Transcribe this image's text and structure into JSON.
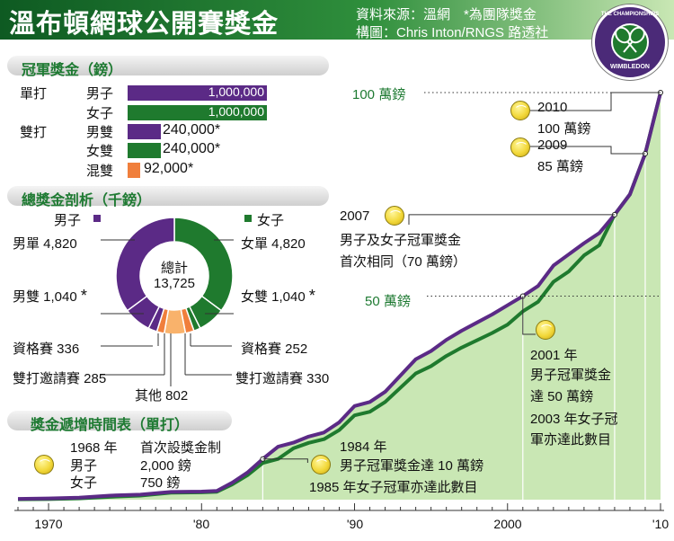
{
  "header": {
    "title": "溫布頓網球公開賽獎金",
    "source_line1": "資料來源：溫網　*為團隊獎金",
    "source_line2": "構圖：Chris Inton/RNGS  路透社",
    "logo_top": "THE CHAMPIONSHIPS",
    "logo_bottom": "WIMBLEDON"
  },
  "champion_prize": {
    "section_title": "冠軍獎金（鎊）",
    "singles_label": "單打",
    "doubles_label": "雙打",
    "rows": [
      {
        "label": "男子",
        "value": 1000000,
        "text": "1,000,000",
        "color": "#5b2a86",
        "asterisk": ""
      },
      {
        "label": "女子",
        "value": 1000000,
        "text": "1,000,000",
        "color": "#1f7a2e",
        "asterisk": ""
      },
      {
        "label": "男雙",
        "value": 240000,
        "text": "240,000",
        "color": "#5b2a86",
        "asterisk": "*"
      },
      {
        "label": "女雙",
        "value": 240000,
        "text": "240,000",
        "color": "#1f7a2e",
        "asterisk": "*"
      },
      {
        "label": "混雙",
        "value": 92000,
        "text": "92,000",
        "color": "#f07f3c",
        "asterisk": "*"
      }
    ]
  },
  "breakdown": {
    "section_title": "總獎金剖析（千鎊）",
    "legend_men": "男子",
    "legend_women": "女子",
    "total_label": "總計",
    "total_value": "13,725",
    "labels": {
      "men_singles": "男單 4,820",
      "women_singles": "女單 4,820",
      "men_doubles": "男雙 1,040",
      "women_doubles": "女雙 1,040",
      "men_qual": "資格賽 336",
      "women_qual": "資格賽 252",
      "men_invit": "雙打邀請賽 285",
      "women_invit": "雙打邀請賽 330",
      "other": "其他 802",
      "star": "*"
    }
  },
  "timeline": {
    "section_title": "獎金遞增時間表（單打）",
    "ann_1968_year": "1968 年",
    "ann_1968_text": "首次設獎金制",
    "ann_1968_men": "男子",
    "ann_1968_men_val": "2,000 鎊",
    "ann_1968_women": "女子",
    "ann_1968_women_val": "750 鎊",
    "ann_1984_year": "1984 年",
    "ann_1984_l1": "男子冠軍獎金達 10 萬鎊",
    "ann_1984_l2": "1985 年女子冠軍亦達此數目",
    "ann_2001_l1": "2001 年",
    "ann_2001_l2": "男子冠軍獎金",
    "ann_2001_l3": "達 50 萬鎊",
    "ann_2001_l4": "2003 年女子冠",
    "ann_2001_l5": "軍亦達此數目",
    "ann_2007_l1": "2007",
    "ann_2007_l2": "男子及女子冠軍獎金",
    "ann_2007_l3": "首次相同（70 萬鎊）",
    "ann_2009_l1": "2009",
    "ann_2009_l2": "85 萬鎊",
    "ann_2010_l1": "2010",
    "ann_2010_l2": "100 萬鎊",
    "ref_100": "100 萬鎊",
    "ref_50": "50 萬鎊"
  },
  "colors": {
    "men": "#5b2a86",
    "women": "#1f7a2e",
    "mixed": "#f07f3c",
    "title_green": "#1e7a32",
    "area": "#c9e7b4"
  },
  "chart_data": {
    "type": "line",
    "title": "獎金遞增時間表（單打）",
    "xlabel": "",
    "ylabel": "",
    "x_tick_labels": [
      "1970",
      "'80",
      "'90",
      "2000",
      "'10"
    ],
    "x_ticks": [
      1970,
      1980,
      1990,
      2000,
      2010
    ],
    "xlim": [
      1968,
      2010
    ],
    "ylim": [
      0,
      1000000
    ],
    "series": [
      {
        "name": "男子",
        "points": [
          [
            1968,
            2000
          ],
          [
            1970,
            3000
          ],
          [
            1972,
            5000
          ],
          [
            1974,
            10000
          ],
          [
            1976,
            12500
          ],
          [
            1978,
            19000
          ],
          [
            1980,
            20000
          ],
          [
            1981,
            21600
          ],
          [
            1982,
            41667
          ],
          [
            1983,
            66600
          ],
          [
            1984,
            100000
          ],
          [
            1985,
            130000
          ],
          [
            1986,
            140000
          ],
          [
            1987,
            155000
          ],
          [
            1988,
            165000
          ],
          [
            1989,
            190000
          ],
          [
            1990,
            230000
          ],
          [
            1991,
            240000
          ],
          [
            1992,
            265000
          ],
          [
            1993,
            305000
          ],
          [
            1994,
            345000
          ],
          [
            1995,
            365000
          ],
          [
            1996,
            392500
          ],
          [
            1997,
            415000
          ],
          [
            1998,
            435000
          ],
          [
            1999,
            455000
          ],
          [
            2000,
            477500
          ],
          [
            2001,
            500000
          ],
          [
            2002,
            525000
          ],
          [
            2003,
            575000
          ],
          [
            2004,
            602500
          ],
          [
            2005,
            630000
          ],
          [
            2006,
            655000
          ],
          [
            2007,
            700000
          ],
          [
            2008,
            750000
          ],
          [
            2009,
            850000
          ],
          [
            2010,
            1000000
          ]
        ]
      },
      {
        "name": "女子",
        "points": [
          [
            1968,
            750
          ],
          [
            1970,
            1500
          ],
          [
            1972,
            3000
          ],
          [
            1974,
            7000
          ],
          [
            1976,
            10000
          ],
          [
            1978,
            17100
          ],
          [
            1980,
            18000
          ],
          [
            1981,
            19440
          ],
          [
            1982,
            37500
          ],
          [
            1983,
            60000
          ],
          [
            1984,
            90000
          ],
          [
            1985,
            100000
          ],
          [
            1986,
            126000
          ],
          [
            1987,
            139500
          ],
          [
            1988,
            148500
          ],
          [
            1989,
            171000
          ],
          [
            1990,
            207000
          ],
          [
            1991,
            216000
          ],
          [
            1992,
            240000
          ],
          [
            1993,
            275000
          ],
          [
            1994,
            310000
          ],
          [
            1995,
            328000
          ],
          [
            1996,
            353000
          ],
          [
            1997,
            373500
          ],
          [
            1998,
            391500
          ],
          [
            1999,
            409500
          ],
          [
            2000,
            430000
          ],
          [
            2001,
            462500
          ],
          [
            2002,
            486000
          ],
          [
            2003,
            535000
          ],
          [
            2004,
            560500
          ],
          [
            2005,
            600000
          ],
          [
            2006,
            625000
          ],
          [
            2007,
            700000
          ],
          [
            2008,
            750000
          ],
          [
            2009,
            850000
          ],
          [
            2010,
            1000000
          ]
        ]
      }
    ],
    "reference_lines": [
      {
        "label": "100 萬鎊",
        "value": 1000000
      },
      {
        "label": "50 萬鎊",
        "value": 500000
      }
    ],
    "legend": "none"
  }
}
